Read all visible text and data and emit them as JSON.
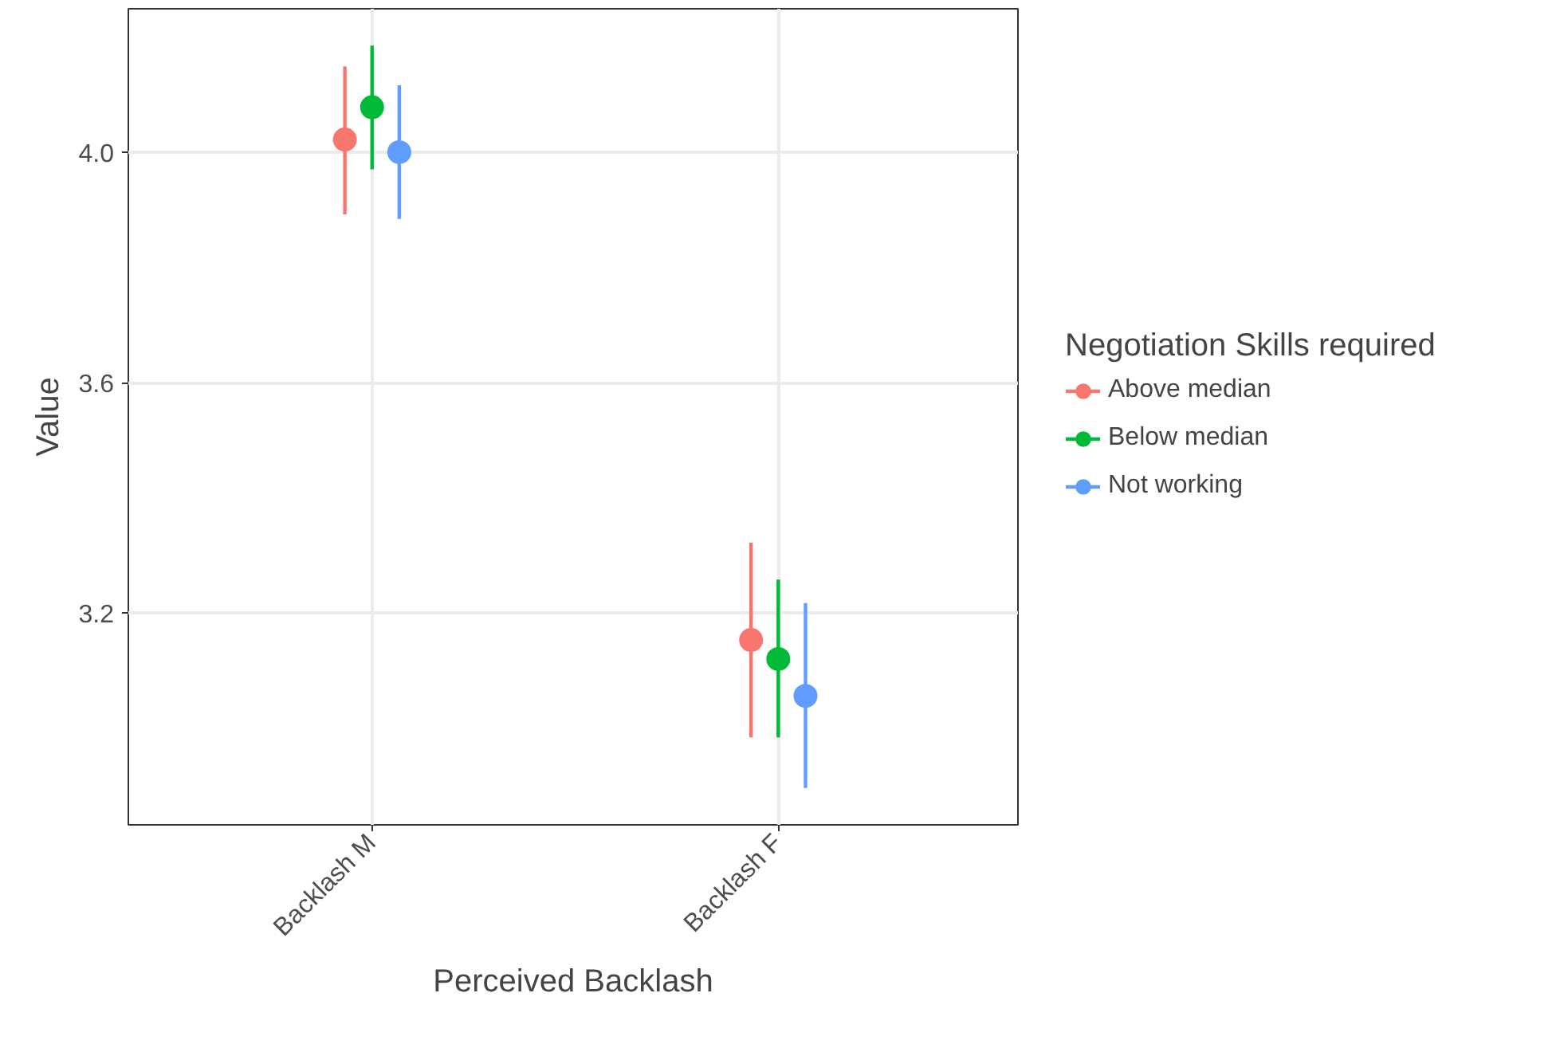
{
  "chart_data": {
    "type": "scatter",
    "xlabel": "Perceived Backlash",
    "ylabel": "Value",
    "legend_title": "Negotiation Skills required",
    "categories": [
      "Backlash M",
      "Backlash F"
    ],
    "series": [
      {
        "name": "Above median",
        "color": "#f8766d",
        "values": [
          4.022,
          3.153
        ],
        "errors": [
          [
            3.892,
            4.149
          ],
          [
            2.984,
            3.322
          ]
        ]
      },
      {
        "name": "Below median",
        "color": "#00ba38",
        "values": [
          4.078,
          3.12
        ],
        "errors": [
          [
            3.97,
            4.185
          ],
          [
            2.984,
            3.258
          ]
        ]
      },
      {
        "name": "Not working",
        "color": "#619cff",
        "values": [
          4.0,
          3.056
        ],
        "errors": [
          [
            3.884,
            4.116
          ],
          [
            2.896,
            3.217
          ]
        ]
      }
    ],
    "ylim": [
      2.832,
      4.249
    ],
    "yticks": [
      {
        "value": 3.2,
        "label": "3.2"
      },
      {
        "value": 3.6,
        "label": "3.6"
      },
      {
        "value": 4.0,
        "label": "4.0"
      }
    ],
    "grid": true,
    "legend": "right",
    "marker": "circle"
  }
}
